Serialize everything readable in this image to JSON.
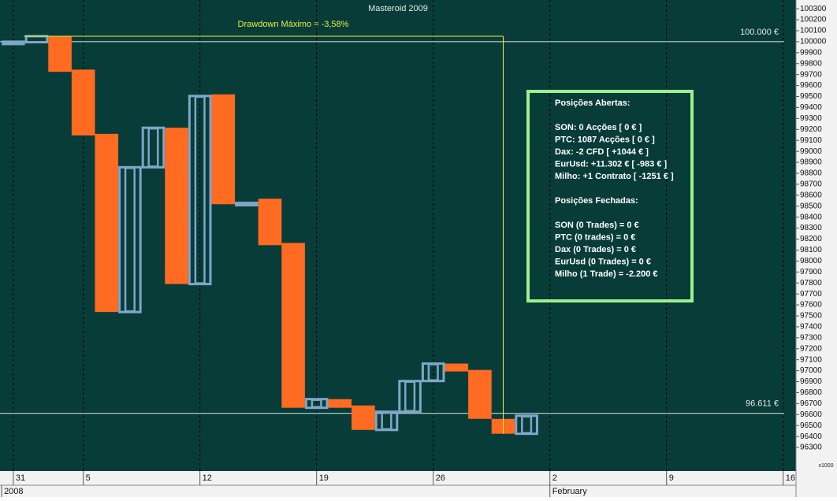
{
  "chart_data": {
    "type": "box",
    "title": "Masteroid 2009",
    "x": [
      0,
      1,
      2,
      3,
      4,
      5,
      6,
      7,
      8,
      9,
      10,
      11,
      12,
      13,
      14,
      15,
      16,
      17,
      18,
      19,
      20,
      21,
      22
    ],
    "series": [
      {
        "name": "open",
        "values": [
          100000,
          99995,
          100050,
          99745,
          99160,
          97535,
          98855,
          99215,
          97790,
          99520,
          98530,
          98568,
          98165,
          96662,
          96741,
          96683,
          96460,
          96626,
          96906,
          97065,
          97007,
          96561,
          96425
        ]
      },
      {
        "name": "close",
        "values": [
          100000,
          100050,
          99725,
          99145,
          97535,
          98855,
          99215,
          97790,
          99505,
          98518,
          98530,
          98144,
          96662,
          96741,
          96662,
          96460,
          96626,
          96906,
          97065,
          96993,
          96561,
          96425,
          96590
        ]
      }
    ],
    "up_color": "#7fa6c8",
    "down_color": "#ff6b21",
    "xlim": [
      -0.57,
      33.55
    ],
    "xticks": [
      {
        "value": 0,
        "label": "31"
      },
      {
        "value": 3,
        "label": "5"
      },
      {
        "value": 8,
        "label": "12"
      },
      {
        "value": 13,
        "label": "19"
      },
      {
        "value": 18,
        "label": "26"
      },
      {
        "value": 23,
        "label": "2"
      },
      {
        "value": 28,
        "label": "9"
      },
      {
        "value": 33,
        "label": "16"
      }
    ],
    "period_labels": [
      {
        "value": -0.5,
        "label": "2008"
      },
      {
        "value": 23,
        "label": "February"
      }
    ],
    "ylim": [
      96085,
      100380
    ],
    "yticks": [
      100300,
      100200,
      100100,
      100000,
      99900,
      99800,
      99700,
      99600,
      99500,
      99400,
      99300,
      99200,
      99100,
      99000,
      98900,
      98800,
      98700,
      98600,
      98500,
      98400,
      98300,
      98200,
      98100,
      98000,
      97900,
      97800,
      97700,
      97600,
      97500,
      97400,
      97300,
      97200,
      97100,
      97000,
      96900,
      96800,
      96700,
      96600,
      96500,
      96400,
      96300
    ],
    "y_unit": "x1000",
    "reference_lines": [
      {
        "value": 100000,
        "label": "100.000 €"
      },
      {
        "value": 96611,
        "label": "96.611 €"
      }
    ],
    "drawdown": {
      "label": "Drawdown Máximo = -3,58%",
      "x": [
        0.45,
        21
      ],
      "values": [
        100050,
        96425
      ]
    },
    "positions": {
      "open_title": "Posições Abertas:",
      "open_lines": [
        "SON: 0 Acções [ 0 € ]",
        "PTC: 1087 Acções [ 0 € ]",
        "Dax: -2 CFD [ +1044 € ]",
        "EurUsd: +11.302 € [ -983 € ]",
        "Milho: +1 Contrato [ -1251 € ]"
      ],
      "closed_title": "Posições Fechadas:",
      "closed_lines": [
        "SON (0 Trades) = 0 €",
        "PTC (0 trades) = 0 €",
        "Dax (0 Trades) = 0 €",
        "EurUsd (0 Trades) = 0 €",
        "Milho (1 Trade) = -2.200 €"
      ]
    }
  }
}
